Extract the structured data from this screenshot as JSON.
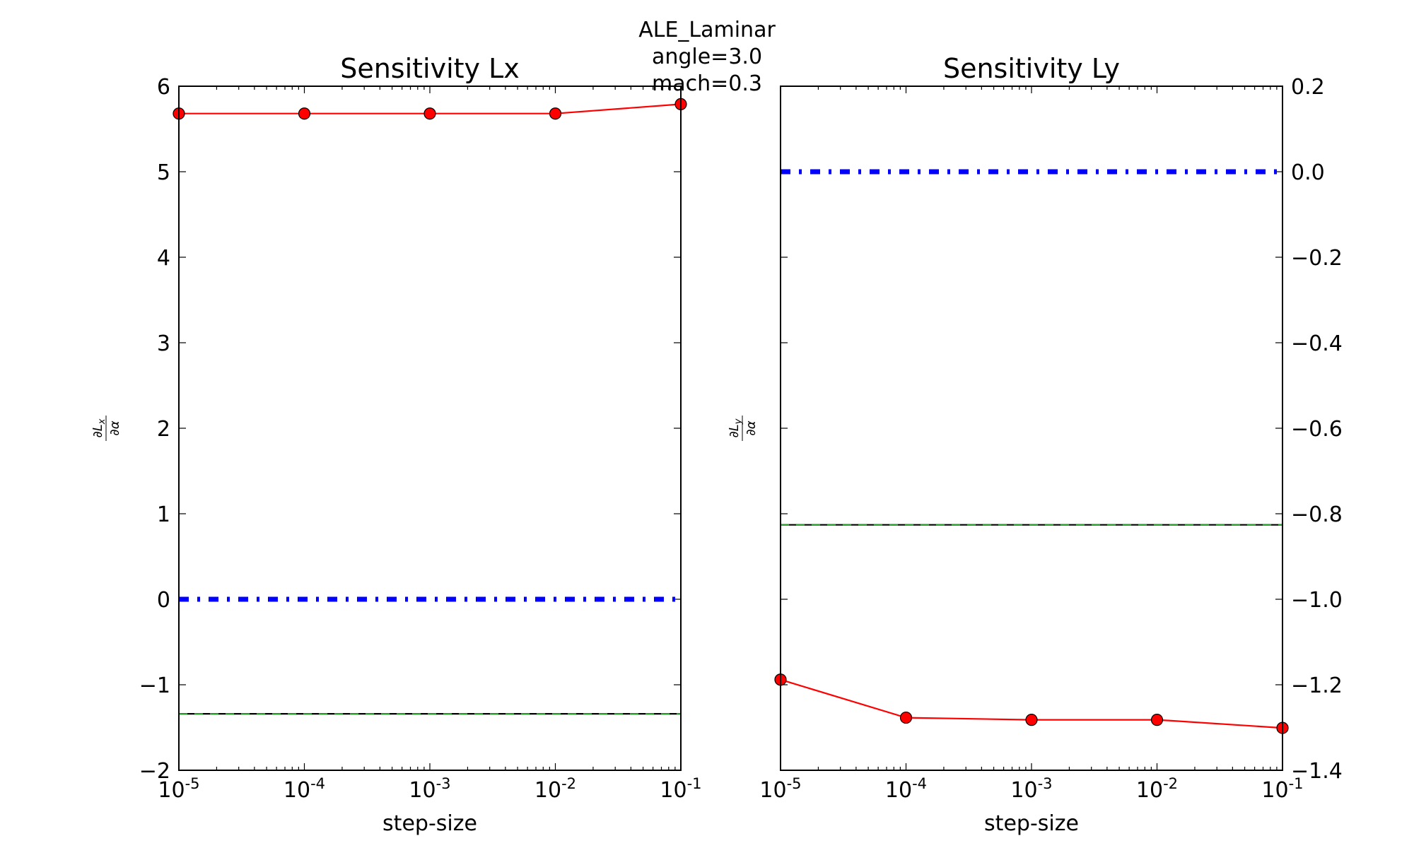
{
  "figure": {
    "suptitle_lines": [
      "ALE_Laminar",
      "angle=3.0",
      "mach=0.3"
    ]
  },
  "chart_data": [
    {
      "type": "line",
      "title": "Sensitivity Lx",
      "xlabel": "step-size",
      "ylabel": "∂Lx/∂α",
      "ylabel_parts": {
        "num_base": "∂L",
        "num_sub": "x",
        "den": "∂α"
      },
      "xscale": "log",
      "xlim": [
        1e-05,
        0.1
      ],
      "ylim": [
        -2,
        6
      ],
      "xticks": [
        1e-05,
        0.0001,
        0.001,
        0.01,
        0.1
      ],
      "xtick_labels": [
        {
          "base": "10",
          "exp": "-5"
        },
        {
          "base": "10",
          "exp": "-4"
        },
        {
          "base": "10",
          "exp": "-3"
        },
        {
          "base": "10",
          "exp": "-2"
        },
        {
          "base": "10",
          "exp": "-1"
        }
      ],
      "yticks": [
        -2,
        -1,
        0,
        1,
        2,
        3,
        4,
        5,
        6
      ],
      "ytick_labels": [
        "−2",
        "−1",
        "0",
        "1",
        "2",
        "3",
        "4",
        "5",
        "6"
      ],
      "ytick_side": "left",
      "grid": false,
      "legend": "none",
      "series": [
        {
          "x": [
            1e-05,
            0.0001,
            0.001,
            0.01,
            0.1
          ],
          "values": [
            5.68,
            5.68,
            5.68,
            5.68,
            5.79
          ],
          "color": "#ff0000",
          "style": "solid",
          "marker": "circle"
        },
        {
          "x": [
            1e-05,
            0.1
          ],
          "values": [
            0.0,
            0.0
          ],
          "color": "#0000ff",
          "style": "dashdot"
        },
        {
          "x": [
            1e-05,
            0.1
          ],
          "values": [
            -1.34,
            -1.34
          ],
          "color": "#000000",
          "style": "solid"
        },
        {
          "x": [
            1e-05,
            0.1
          ],
          "values": [
            -1.34,
            -1.34
          ],
          "color": "#2ca02c",
          "style": "dashed"
        }
      ]
    },
    {
      "type": "line",
      "title": "Sensitivity Ly",
      "xlabel": "step-size",
      "ylabel": "∂Ly/∂α",
      "ylabel_parts": {
        "num_base": "∂L",
        "num_sub": "y",
        "den": "∂α"
      },
      "xscale": "log",
      "xlim": [
        1e-05,
        0.1
      ],
      "ylim": [
        -1.4,
        0.2
      ],
      "xticks": [
        1e-05,
        0.0001,
        0.001,
        0.01,
        0.1
      ],
      "xtick_labels": [
        {
          "base": "10",
          "exp": "-5"
        },
        {
          "base": "10",
          "exp": "-4"
        },
        {
          "base": "10",
          "exp": "-3"
        },
        {
          "base": "10",
          "exp": "-2"
        },
        {
          "base": "10",
          "exp": "-1"
        }
      ],
      "yticks": [
        -1.4,
        -1.2,
        -1.0,
        -0.8,
        -0.6,
        -0.4,
        -0.2,
        0.0,
        0.2
      ],
      "ytick_labels": [
        "−1.4",
        "−1.2",
        "−1.0",
        "−0.8",
        "−0.6",
        "−0.4",
        "−0.2",
        "0.0",
        "0.2"
      ],
      "ytick_side": "right",
      "grid": false,
      "legend": "none",
      "series": [
        {
          "x": [
            1e-05,
            0.0001,
            0.001,
            0.01,
            0.1
          ],
          "values": [
            -1.188,
            -1.277,
            -1.282,
            -1.282,
            -1.301
          ],
          "color": "#ff0000",
          "style": "solid",
          "marker": "circle"
        },
        {
          "x": [
            1e-05,
            0.1
          ],
          "values": [
            0.0,
            0.0
          ],
          "color": "#0000ff",
          "style": "dashdot"
        },
        {
          "x": [
            1e-05,
            0.1
          ],
          "values": [
            -0.826,
            -0.826
          ],
          "color": "#000000",
          "style": "solid"
        },
        {
          "x": [
            1e-05,
            0.1
          ],
          "values": [
            -0.826,
            -0.826
          ],
          "color": "#2ca02c",
          "style": "dashed"
        }
      ]
    }
  ]
}
